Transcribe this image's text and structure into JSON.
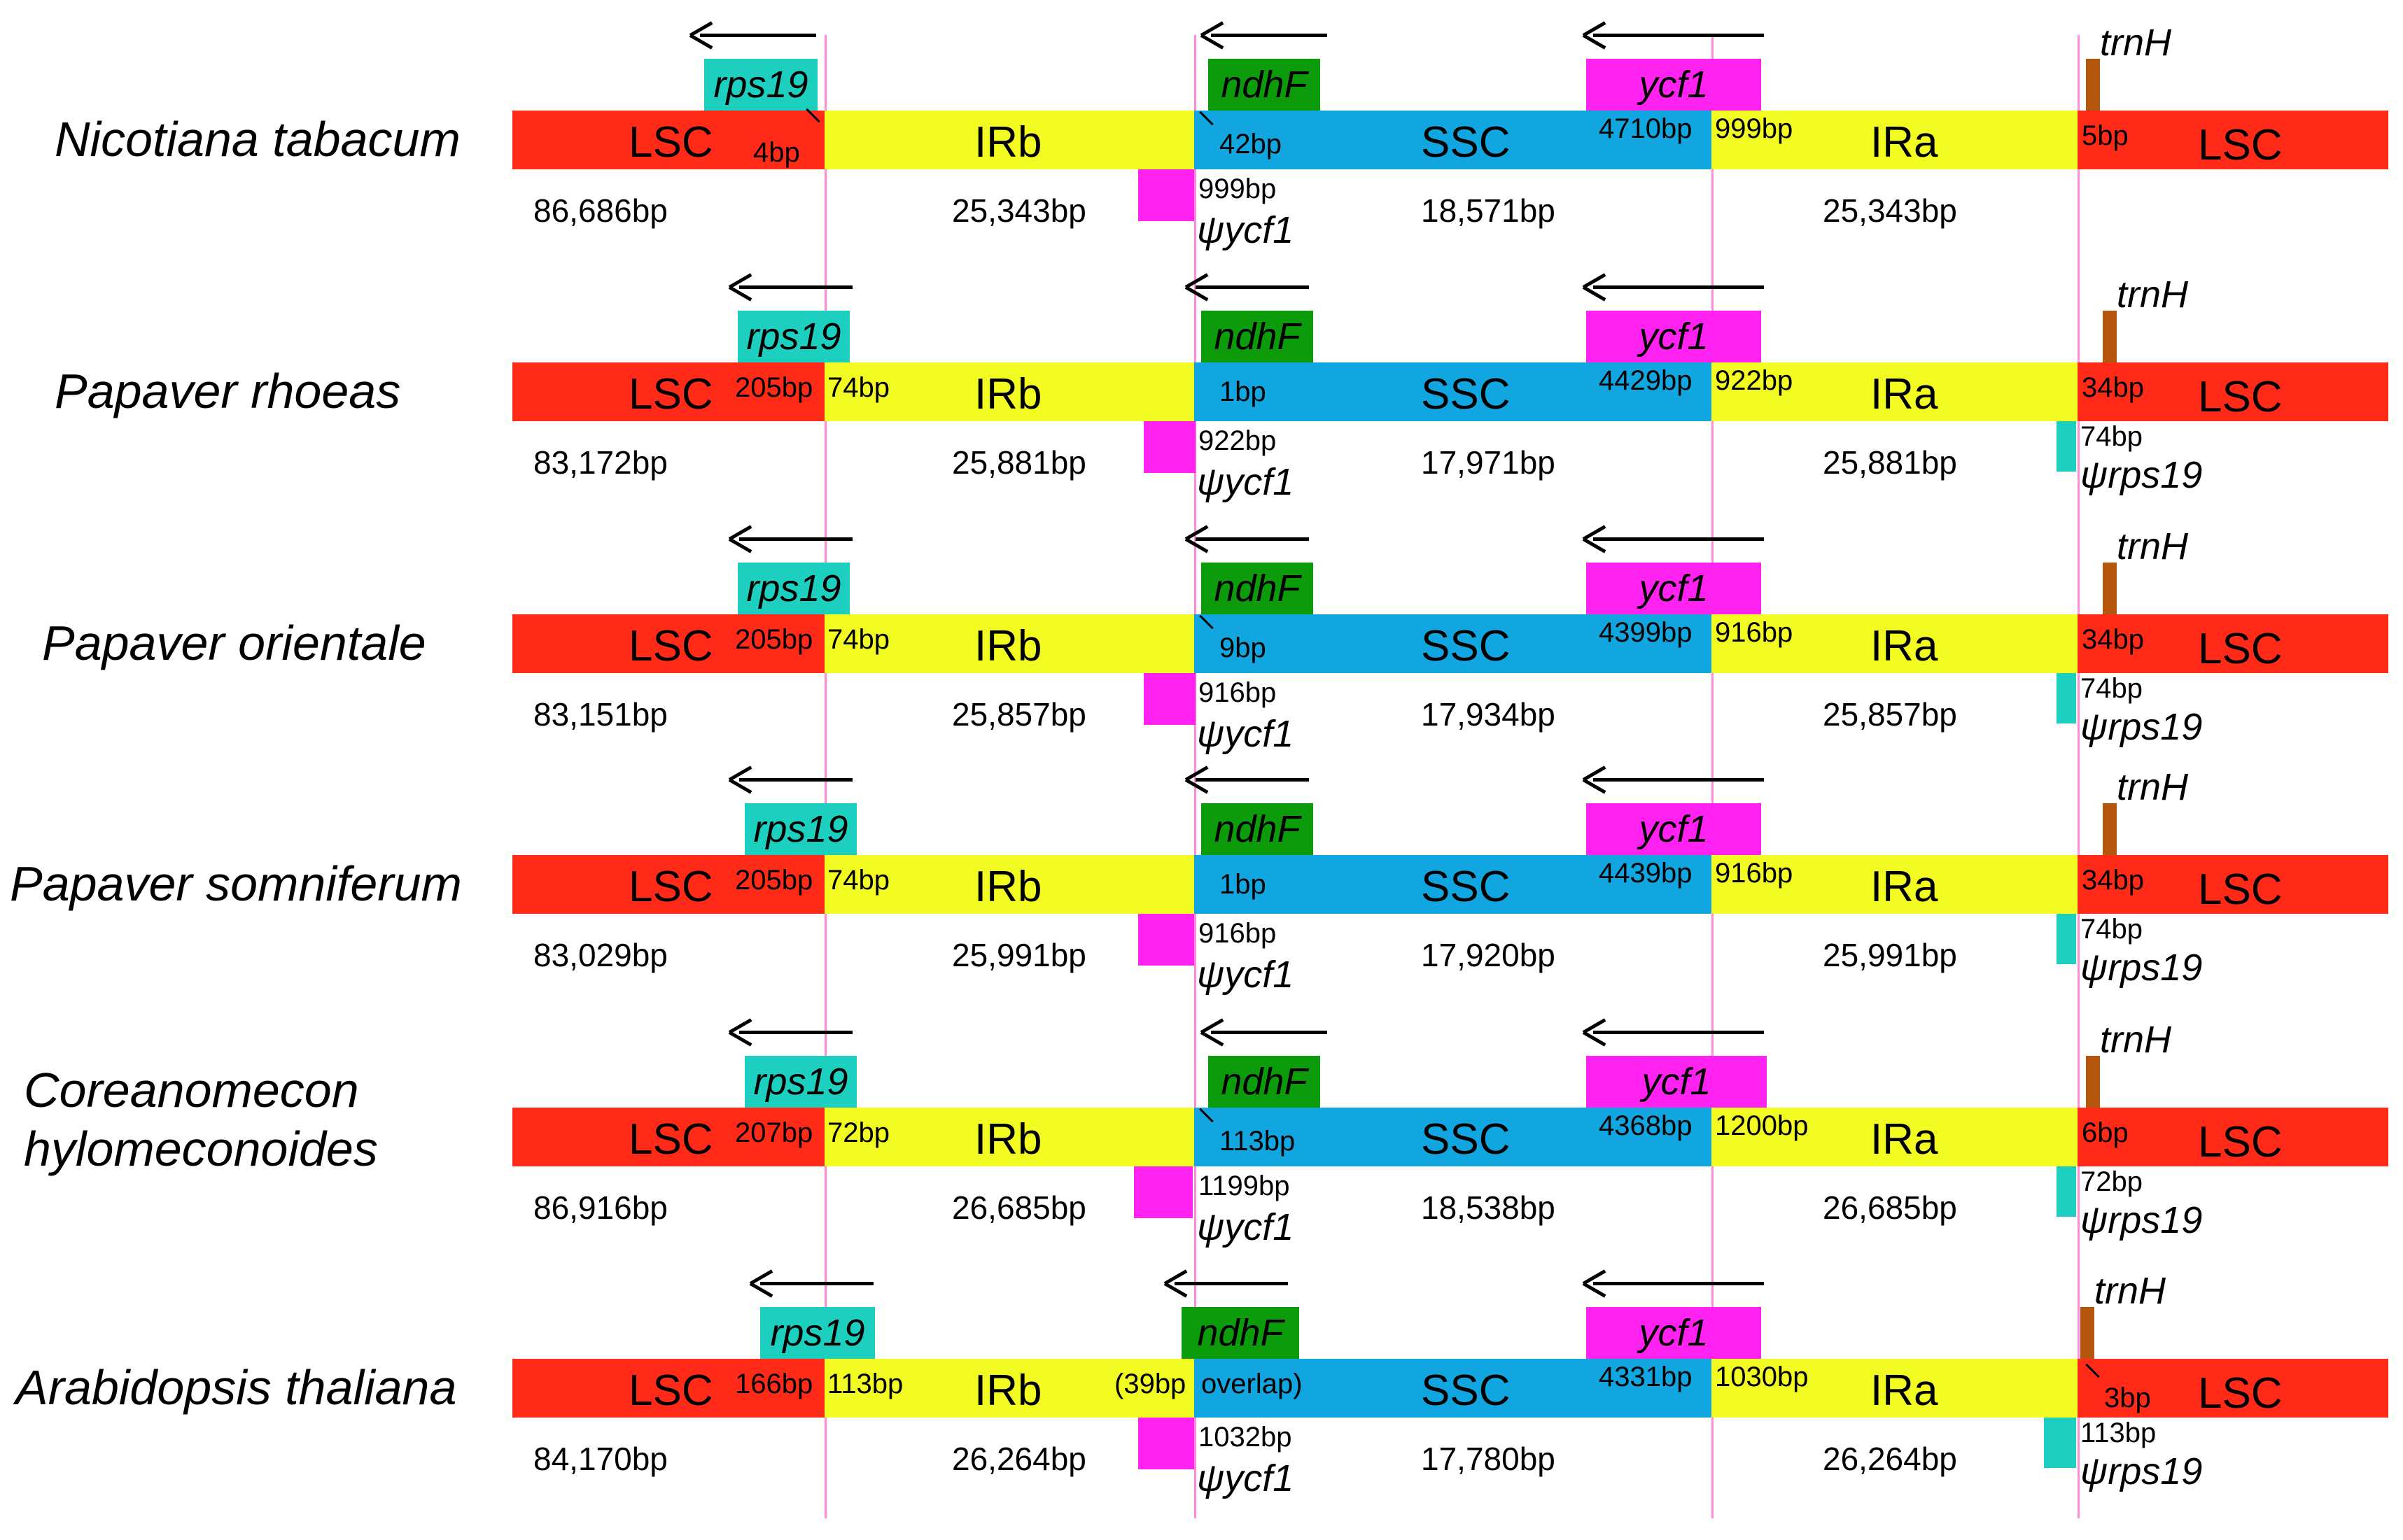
{
  "colors": {
    "LSC": "#ff2a17",
    "IRb": "#f2fb22",
    "SSC": "#12a6e0",
    "IRa": "#f2fb22",
    "rps19": "#1dcfbf",
    "ndhF": "#0b9b0b",
    "ycf1": "#ff22f0",
    "trnH": "#b5560f",
    "junction_line": "#ff8ad8"
  },
  "region_names": {
    "lsc": "LSC",
    "irb": "IRb",
    "ssc": "SSC",
    "ira": "IRa"
  },
  "gene_names": {
    "rps19": "rps19",
    "ndhF": "ndhF",
    "ycf1": "ycf1",
    "trnH": "trnH",
    "psi_ycf1": "ψycf1",
    "psi_rps19": "ψrps19"
  },
  "species": [
    {
      "name": "Nicotiana tabacum",
      "lsc_len": "86,686bp",
      "irb_len": "25,343bp",
      "ssc_len": "18,571bp",
      "ira_len": "25,343bp",
      "lsc_irb_left": "",
      "lsc_irb_right": "4bp",
      "irb_ssc": "42bp",
      "ssc_ira_left": "4710bp",
      "ssc_ira_right": "999bp",
      "ira_lsc": "5bp",
      "psi_ycf1_len": "999bp",
      "psi_rps19_len": ""
    },
    {
      "name": "Papaver rhoeas",
      "lsc_len": "83,172bp",
      "irb_len": "25,881bp",
      "ssc_len": "17,971bp",
      "ira_len": "25,881bp",
      "lsc_irb_left": "205bp",
      "lsc_irb_right": "74bp",
      "irb_ssc": "1bp",
      "ssc_ira_left": "4429bp",
      "ssc_ira_right": "922bp",
      "ira_lsc": "34bp",
      "psi_ycf1_len": "922bp",
      "psi_rps19_len": "74bp"
    },
    {
      "name": "Papaver orientale",
      "lsc_len": "83,151bp",
      "irb_len": "25,857bp",
      "ssc_len": "17,934bp",
      "ira_len": "25,857bp",
      "lsc_irb_left": "205bp",
      "lsc_irb_right": "74bp",
      "irb_ssc": "9bp",
      "ssc_ira_left": "4399bp",
      "ssc_ira_right": "916bp",
      "ira_lsc": "34bp",
      "psi_ycf1_len": "916bp",
      "psi_rps19_len": "74bp"
    },
    {
      "name": "Papaver somniferum",
      "lsc_len": "83,029bp",
      "irb_len": "25,991bp",
      "ssc_len": "17,920bp",
      "ira_len": "25,991bp",
      "lsc_irb_left": "205bp",
      "lsc_irb_right": "74bp",
      "irb_ssc": "1bp",
      "ssc_ira_left": "4439bp",
      "ssc_ira_right": "916bp",
      "ira_lsc": "34bp",
      "psi_ycf1_len": "916bp",
      "psi_rps19_len": "74bp"
    },
    {
      "name": "Coreanomecon hylomeconoides",
      "name_line1": "Coreanomecon",
      "name_line2": "hylomeconoides",
      "lsc_len": "86,916bp",
      "irb_len": "26,685bp",
      "ssc_len": "18,538bp",
      "ira_len": "26,685bp",
      "lsc_irb_left": "207bp",
      "lsc_irb_right": "72bp",
      "irb_ssc": "113bp",
      "ssc_ira_left": "4368bp",
      "ssc_ira_right": "1200bp",
      "ira_lsc": "6bp",
      "psi_ycf1_len": "1199bp",
      "psi_rps19_len": "72bp"
    },
    {
      "name": "Arabidopsis thaliana",
      "lsc_len": "84,170bp",
      "irb_len": "26,264bp",
      "ssc_len": "17,780bp",
      "ira_len": "26,264bp",
      "lsc_irb_left": "166bp",
      "lsc_irb_right": "113bp",
      "irb_ssc_left": "(39bp",
      "irb_ssc_right": "overlap)",
      "ssc_ira_left": "4331bp",
      "ssc_ira_right": "1030bp",
      "ira_lsc": "3bp",
      "psi_ycf1_len": "1032bp",
      "psi_rps19_len": "113bp"
    }
  ]
}
